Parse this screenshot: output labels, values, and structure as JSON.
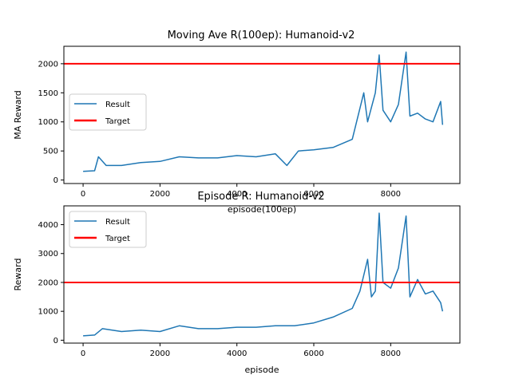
{
  "chart_data": [
    {
      "type": "line",
      "title": "Moving Ave R(100ep): Humanoid-v2",
      "xlabel": "episode(100ep)",
      "ylabel": "MA Reward",
      "xlim": [
        -500,
        9800
      ],
      "ylim": [
        -60,
        2300
      ],
      "xticks": [
        0,
        2000,
        4000,
        6000,
        8000
      ],
      "yticks": [
        0,
        500,
        1000,
        1500,
        2000
      ],
      "grid": false,
      "legend_position": "center-left",
      "series": [
        {
          "name": "Result",
          "color": "#1f77b4",
          "x": [
            0,
            300,
            400,
            600,
            1000,
            1500,
            2000,
            2500,
            3000,
            3500,
            4000,
            4500,
            5000,
            5300,
            5600,
            6000,
            6500,
            7000,
            7300,
            7400,
            7600,
            7700,
            7800,
            8000,
            8200,
            8400,
            8500,
            8700,
            8900,
            9100,
            9300,
            9350
          ],
          "y": [
            150,
            160,
            400,
            250,
            250,
            300,
            320,
            400,
            380,
            380,
            420,
            400,
            450,
            250,
            500,
            520,
            560,
            700,
            1500,
            1000,
            1500,
            2150,
            1200,
            1000,
            1300,
            2200,
            1100,
            1150,
            1050,
            1000,
            1350,
            950
          ]
        },
        {
          "name": "Target",
          "color": "#ff0000",
          "y_constant": 2000
        }
      ],
      "legend": [
        "Result",
        "Target"
      ]
    },
    {
      "type": "line",
      "title": "Episode R: Humanoid-v2",
      "xlabel": "episode",
      "ylabel": "Reward",
      "xlim": [
        -500,
        9800
      ],
      "ylim": [
        -100,
        4650
      ],
      "xticks": [
        0,
        2000,
        4000,
        6000,
        8000
      ],
      "yticks": [
        0,
        1000,
        2000,
        3000,
        4000
      ],
      "grid": false,
      "legend_position": "top-left",
      "series": [
        {
          "name": "Result",
          "color": "#1f77b4",
          "x": [
            0,
            300,
            500,
            1000,
            1500,
            2000,
            2500,
            3000,
            3500,
            4000,
            4500,
            5000,
            5500,
            6000,
            6500,
            7000,
            7200,
            7400,
            7500,
            7600,
            7700,
            7800,
            8000,
            8200,
            8400,
            8500,
            8700,
            8900,
            9100,
            9300,
            9350
          ],
          "y": [
            150,
            180,
            400,
            300,
            350,
            300,
            500,
            400,
            400,
            450,
            450,
            500,
            500,
            600,
            800,
            1100,
            1700,
            2800,
            1500,
            1700,
            4400,
            2000,
            1800,
            2500,
            4300,
            1500,
            2100,
            1600,
            1700,
            1300,
            1000
          ]
        },
        {
          "name": "Target",
          "color": "#ff0000",
          "y_constant": 2000
        }
      ],
      "legend": [
        "Result",
        "Target"
      ]
    }
  ]
}
